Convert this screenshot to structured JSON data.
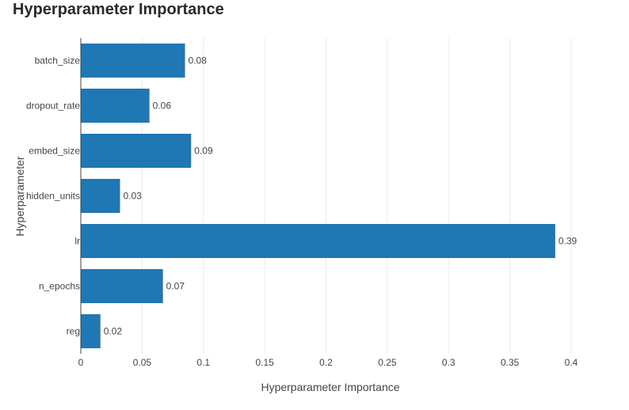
{
  "chart_data": {
    "type": "bar",
    "orientation": "horizontal",
    "title": "Hyperparameter Importance",
    "xlabel": "Hyperparameter Importance",
    "ylabel": "Hyperparameter",
    "categories": [
      "batch_size",
      "dropout_rate",
      "embed_size",
      "hidden_units",
      "lr",
      "n_epochs",
      "reg"
    ],
    "values": [
      0.085,
      0.056,
      0.09,
      0.032,
      0.387,
      0.067,
      0.016
    ],
    "data_labels": [
      "0.08",
      "0.06",
      "0.09",
      "0.03",
      "0.39",
      "0.07",
      "0.02"
    ],
    "xlim": [
      0,
      0.43
    ],
    "xticks": [
      0,
      0.05,
      0.1,
      0.15,
      0.2,
      0.25,
      0.3,
      0.35,
      0.4
    ],
    "xtick_labels": [
      "0",
      "0.05",
      "0.1",
      "0.15",
      "0.2",
      "0.25",
      "0.3",
      "0.35",
      "0.4"
    ],
    "grid": "vertical",
    "bar_color": "#1f77b4",
    "grid_color": "#ebebeb",
    "axis_color": "#444444"
  }
}
